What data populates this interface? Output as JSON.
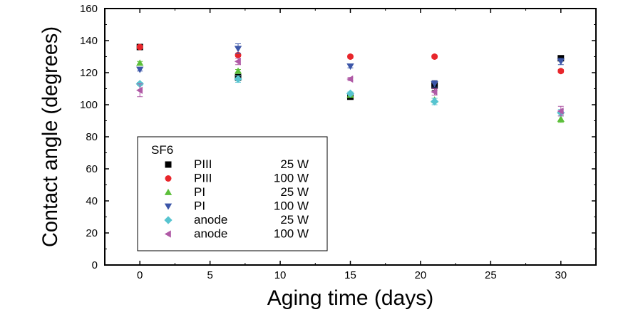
{
  "chart_data": {
    "type": "scatter",
    "xlabel": "Aging time (days)",
    "ylabel": "Contact angle (degrees)",
    "xlim": [
      -2.5,
      32.5
    ],
    "ylim": [
      0,
      160
    ],
    "xticks": [
      "0",
      "5",
      "10",
      "15",
      "20",
      "25",
      "30"
    ],
    "yticks": [
      "0",
      "20",
      "40",
      "60",
      "80",
      "100",
      "120",
      "140",
      "160"
    ],
    "grid": false,
    "legend_position": "lower-left",
    "legend_title": "SF6",
    "series": [
      {
        "name": "PIII",
        "power": "25 W",
        "marker": "square",
        "color": "#000000",
        "x": [
          0,
          7,
          15,
          21,
          30
        ],
        "y": [
          136,
          117,
          105,
          112,
          129
        ],
        "err": [
          1,
          2,
          1,
          3,
          1
        ]
      },
      {
        "name": "PIII",
        "power": "100 W",
        "marker": "circle",
        "color": "#e8262b",
        "x": [
          0,
          7,
          15,
          21,
          30
        ],
        "y": [
          136,
          131,
          130,
          130,
          121
        ],
        "err": [
          1,
          1,
          1,
          1,
          1
        ]
      },
      {
        "name": "PI",
        "power": "25 W",
        "marker": "triangle-up",
        "color": "#5cbf3a",
        "x": [
          0,
          7,
          15,
          21,
          30
        ],
        "y": [
          126,
          121,
          106,
          103,
          91
        ],
        "err": [
          1,
          1,
          1,
          1,
          2
        ]
      },
      {
        "name": "PI",
        "power": "100 W",
        "marker": "triangle-down",
        "color": "#3c56a8",
        "x": [
          0,
          7,
          15,
          21,
          30
        ],
        "y": [
          122,
          135,
          124,
          113,
          127
        ],
        "err": [
          1,
          3,
          1,
          2,
          2
        ]
      },
      {
        "name": "anode",
        "power": "25 W",
        "marker": "diamond",
        "color": "#57c4d0",
        "x": [
          0,
          7,
          15,
          21,
          30
        ],
        "y": [
          113,
          116,
          107,
          102,
          95
        ],
        "err": [
          1,
          2,
          1,
          2,
          2
        ]
      },
      {
        "name": "anode",
        "power": "100 W",
        "marker": "triangle-left",
        "color": "#b05aa6",
        "x": [
          0,
          7,
          15,
          21,
          30
        ],
        "y": [
          109,
          127,
          116,
          108,
          96
        ],
        "err": [
          4,
          2,
          1,
          2,
          3
        ]
      }
    ]
  }
}
